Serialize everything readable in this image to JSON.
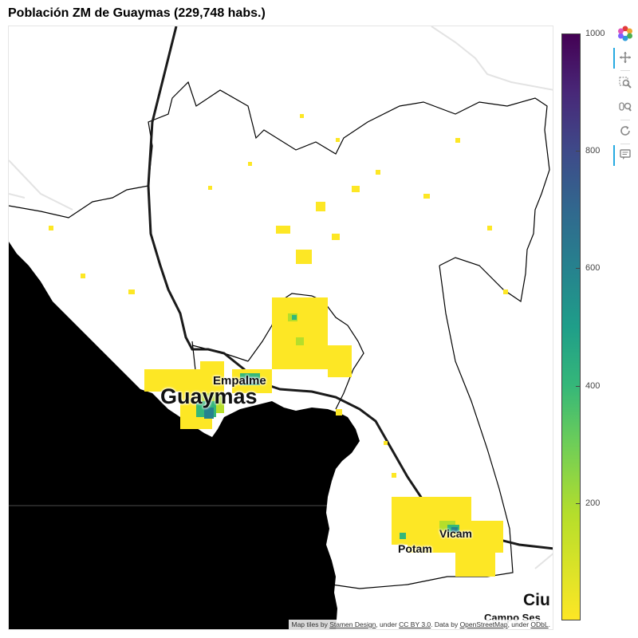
{
  "title": "Población ZM de Guaymas (229,748 habs.)",
  "map_labels": {
    "guaymas": "Guaymas",
    "empalme": "Empalme",
    "vicam": "Vicam",
    "potam": "Potam",
    "ciudad": "Ciu",
    "campo": "Campo Ses"
  },
  "attribution": {
    "prefix": "Map tiles by ",
    "stamen": "Stamen Design",
    "under1": ", under ",
    "ccby": "CC BY 3.0",
    "data_by": ". Data by ",
    "osm": "OpenStreetMap",
    "under2": ", under ",
    "odbl": "ODbL",
    "suffix": "."
  },
  "colorbar": {
    "min": 0,
    "max": 1000,
    "ticks": [
      {
        "label": "1000",
        "value": 1000
      },
      {
        "label": "800",
        "value": 800
      },
      {
        "label": "600",
        "value": 600
      },
      {
        "label": "400",
        "value": 400
      },
      {
        "label": "200",
        "value": 200
      }
    ],
    "palette": "viridis"
  },
  "toolbar": {
    "tools": [
      {
        "name": "bokeh-logo-icon",
        "active": false
      },
      {
        "name": "pan-icon",
        "active": true
      },
      {
        "name": "box-zoom-icon",
        "active": false
      },
      {
        "name": "wheel-zoom-icon",
        "active": false
      },
      {
        "name": "reset-icon",
        "active": false
      },
      {
        "name": "hover-icon",
        "active": true
      }
    ]
  },
  "colors": {
    "low": "#fde725",
    "mid": "#35b779",
    "high": "#26828e",
    "land_dark": "#000000",
    "boundary": "#000000",
    "road": "#1a1a1a",
    "accent": "#26aae1"
  }
}
